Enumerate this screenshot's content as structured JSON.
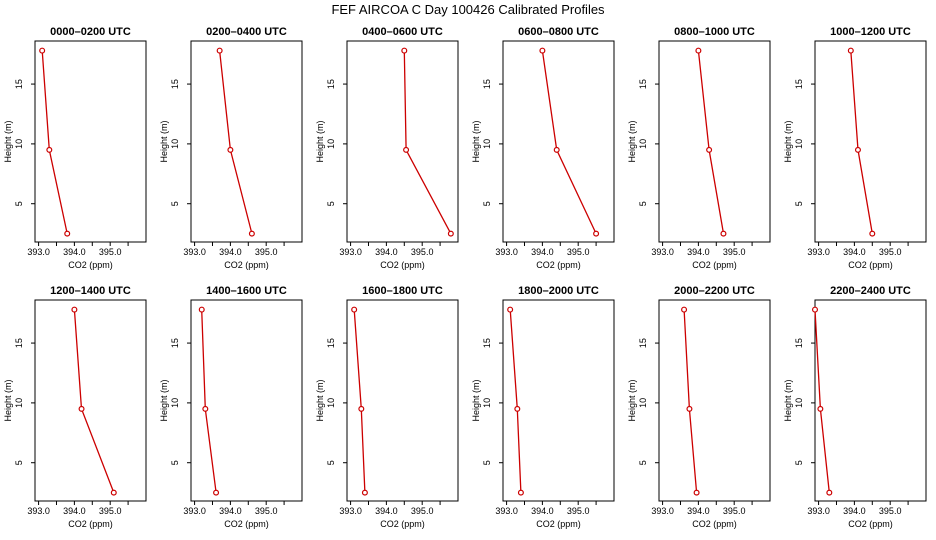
{
  "figure": {
    "title": "FEF AIRCOA C  Day 100426  Calibrated Profiles"
  },
  "chart_data": {
    "type": "line",
    "title": "FEF AIRCOA C  Day 100426  Calibrated Profiles",
    "xlabel": "CO2 (ppm)",
    "ylabel": "Height (m)",
    "xlim": [
      392.9,
      396.0
    ],
    "ylim": [
      1.8,
      18.6
    ],
    "x_ticks": [
      393.0,
      394.0,
      395.0
    ],
    "x_tick_labels": [
      "393.0",
      "394.0",
      "395.0"
    ],
    "y_ticks": [
      5,
      10,
      15
    ],
    "y_tick_labels": [
      "5",
      "10",
      "15"
    ],
    "heights": [
      17.8,
      9.5,
      2.5
    ],
    "line_color": "#cc0000",
    "panels": [
      {
        "title": "0000–0200 UTC",
        "co2": [
          393.1,
          393.3,
          393.8
        ]
      },
      {
        "title": "0200–0400 UTC",
        "co2": [
          393.7,
          394.0,
          394.6
        ]
      },
      {
        "title": "0400–0600 UTC",
        "co2": [
          394.5,
          394.55,
          395.8
        ]
      },
      {
        "title": "0600–0800 UTC",
        "co2": [
          394.0,
          394.4,
          395.5
        ]
      },
      {
        "title": "0800–1000 UTC",
        "co2": [
          394.0,
          394.3,
          394.7
        ]
      },
      {
        "title": "1000–1200 UTC",
        "co2": [
          393.9,
          394.1,
          394.5
        ]
      },
      {
        "title": "1200–1400 UTC",
        "co2": [
          394.0,
          394.2,
          395.1
        ]
      },
      {
        "title": "1400–1600 UTC",
        "co2": [
          393.2,
          393.3,
          393.6
        ]
      },
      {
        "title": "1600–1800 UTC",
        "co2": [
          393.1,
          393.3,
          393.4
        ]
      },
      {
        "title": "1800–2000 UTC",
        "co2": [
          393.1,
          393.3,
          393.4
        ]
      },
      {
        "title": "2000–2200 UTC",
        "co2": [
          393.6,
          393.75,
          393.95
        ]
      },
      {
        "title": "2200–2400 UTC",
        "co2": [
          392.9,
          393.05,
          393.3
        ]
      }
    ]
  }
}
